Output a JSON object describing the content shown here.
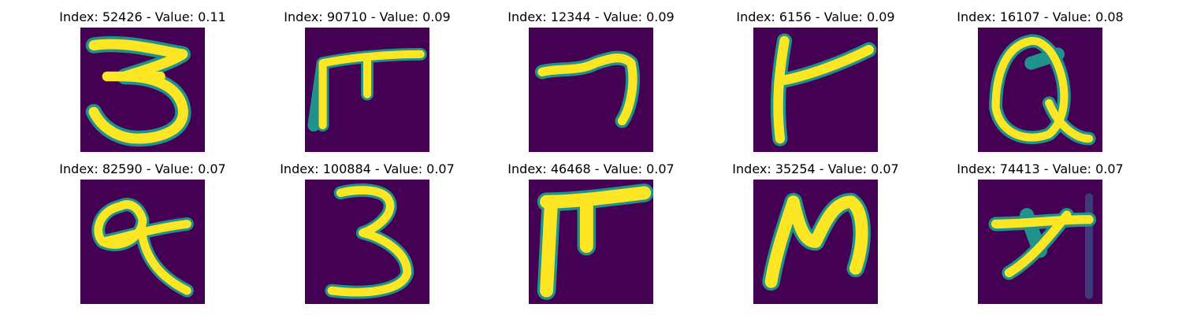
{
  "colors": {
    "background": "#440154",
    "mid": "#21918c",
    "stroke": "#fde725",
    "faint": "#3b528b"
  },
  "panels": [
    {
      "title": "Index: 52426 - Value: 0.11",
      "glyph": "three-loopy"
    },
    {
      "title": "Index: 90710 - Value: 0.09",
      "glyph": "pi-like"
    },
    {
      "title": "Index: 12344 - Value: 0.09",
      "glyph": "seven-hook"
    },
    {
      "title": "Index: 6156 - Value: 0.09",
      "glyph": "t-like"
    },
    {
      "title": "Index: 16107 - Value: 0.08",
      "glyph": "q-like"
    },
    {
      "title": "Index: 82590 - Value: 0.07",
      "glyph": "q-small"
    },
    {
      "title": "Index: 100884 - Value: 0.07",
      "glyph": "three-tall"
    },
    {
      "title": "Index: 46468 - Value: 0.07",
      "glyph": "pi-bold"
    },
    {
      "title": "Index: 35254 - Value: 0.07",
      "glyph": "n-like"
    },
    {
      "title": "Index: 74413 - Value: 0.07",
      "glyph": "x-like"
    }
  ]
}
